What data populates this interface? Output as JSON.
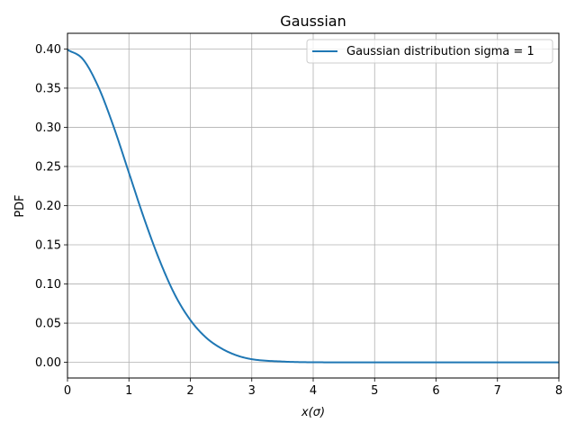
{
  "chart_data": {
    "type": "line",
    "title": "Gaussian",
    "xlabel": "x(σ)",
    "ylabel": "PDF",
    "xlim": [
      0,
      8
    ],
    "ylim": [
      -0.02,
      0.42
    ],
    "grid": true,
    "legend_position": "top-right",
    "x_ticks": [
      0,
      1,
      2,
      3,
      4,
      5,
      6,
      7,
      8
    ],
    "x_tick_labels": [
      "0",
      "1",
      "2",
      "3",
      "4",
      "5",
      "6",
      "7",
      "8"
    ],
    "y_ticks": [
      0.0,
      0.05,
      0.1,
      0.15,
      0.2,
      0.25,
      0.3,
      0.35,
      0.4
    ],
    "y_tick_labels": [
      "0.00",
      "0.05",
      "0.10",
      "0.15",
      "0.20",
      "0.25",
      "0.30",
      "0.35",
      "0.40"
    ],
    "series": [
      {
        "name": "Gaussian distribution sigma = 1",
        "color": "#1f77b4",
        "x": [
          0,
          0.25,
          0.5,
          0.75,
          1.0,
          1.25,
          1.5,
          1.75,
          2.0,
          2.25,
          2.5,
          2.75,
          3.0,
          3.5,
          4.0,
          4.5,
          5.0,
          6.0,
          7.0,
          8.0
        ],
        "y": [
          0.399,
          0.387,
          0.352,
          0.301,
          0.242,
          0.183,
          0.13,
          0.086,
          0.054,
          0.032,
          0.018,
          0.009,
          0.004,
          0.001,
          0.0001,
          0.0,
          0.0,
          0.0,
          0.0,
          0.0
        ]
      }
    ]
  }
}
